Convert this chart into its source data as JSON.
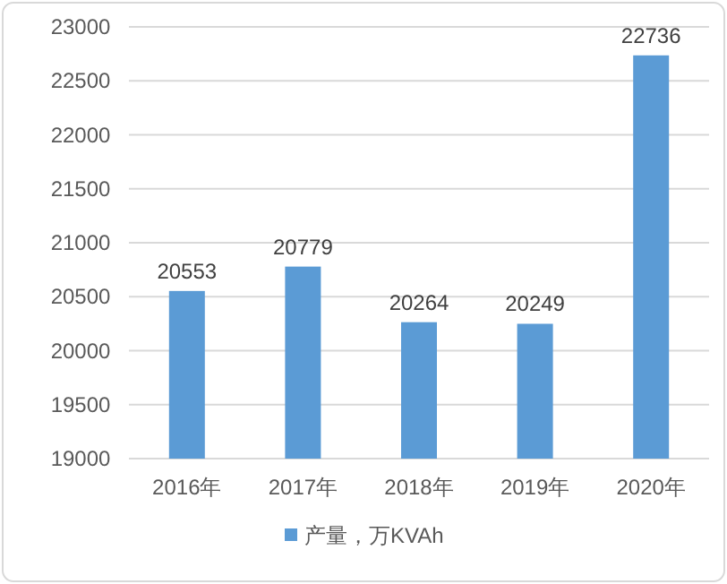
{
  "chart_data": {
    "type": "bar",
    "categories": [
      "2016年",
      "2017年",
      "2018年",
      "2019年",
      "2020年"
    ],
    "series": [
      {
        "name": "产量，万KVAh",
        "color": "#5b9bd5",
        "values": [
          20553,
          20779,
          20264,
          20249,
          22736
        ]
      }
    ],
    "ylim": [
      19000,
      23000
    ],
    "yticks": [
      19000,
      19500,
      20000,
      20500,
      21000,
      21500,
      22000,
      22500,
      23000
    ],
    "grid": "y",
    "legend": "bottom",
    "data_labels": true
  }
}
